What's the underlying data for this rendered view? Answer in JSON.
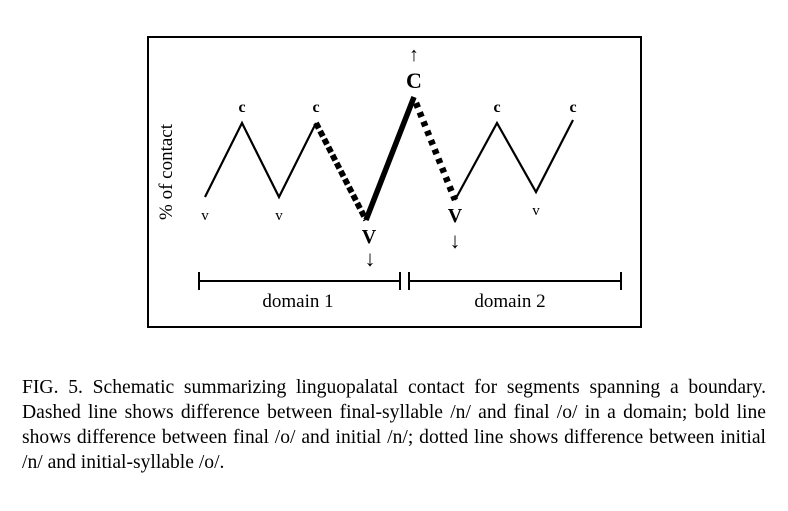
{
  "figure": {
    "ylabel": "% of contact",
    "point_labels": [
      "v",
      "c",
      "v",
      "c",
      "V",
      "C",
      "V",
      "c",
      "v",
      "c"
    ],
    "arrow_up": "↑",
    "arrow_down": "↓",
    "domains": [
      "domain 1",
      "domain 2"
    ]
  },
  "caption": {
    "text": "FIG. 5. Schematic summarizing linguopalatal contact for segments spanning a boundary. Dashed line shows difference between final-syllable /n/ and final /o/ in a domain; bold line shows difference between final /o/ and initial /n/; dotted line shows difference between initial /n/ and initial-syllable /o/."
  }
}
